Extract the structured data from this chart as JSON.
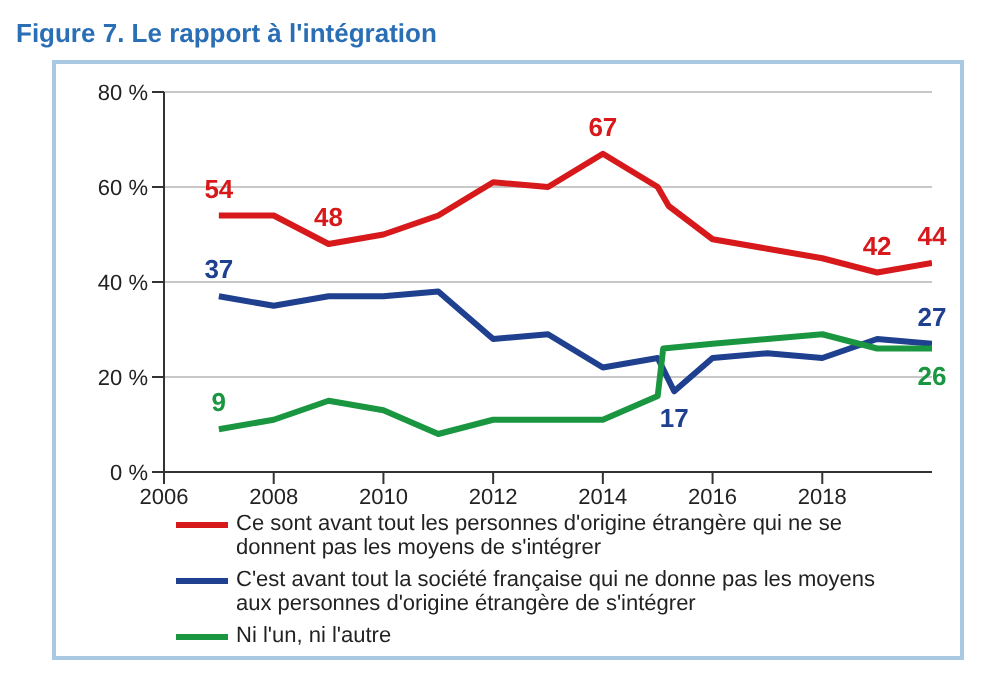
{
  "chart_data": {
    "type": "line",
    "title": "Figure 7. Le rapport à l'intégration",
    "xlim": [
      2006,
      2020
    ],
    "xticks": [
      2006,
      2008,
      2010,
      2012,
      2014,
      2016,
      2018
    ],
    "ylim": [
      0,
      80
    ],
    "yticks": [
      {
        "value": 0,
        "label": "0 %"
      },
      {
        "value": 20,
        "label": "20 %"
      },
      {
        "value": 40,
        "label": "40 %"
      },
      {
        "value": 60,
        "label": "60 %"
      },
      {
        "value": 80,
        "label": "80 %"
      }
    ],
    "grid": "y",
    "legend": "bottom",
    "marker": "none",
    "line_style": "solid",
    "series": [
      {
        "name": "Ce sont avant tout les personnes d'origine étrangère qui ne se donnent pas les moyens de s'intégrer",
        "color": "#d7191c",
        "x": [
          2007,
          2008,
          2009,
          2010,
          2011,
          2012,
          2013,
          2014,
          2015,
          2015.2,
          2016,
          2017,
          2018,
          2019,
          2020
        ],
        "values": [
          54,
          54,
          48,
          50,
          54,
          61,
          60,
          67,
          60,
          56,
          49,
          47,
          45,
          42,
          44
        ],
        "value_labels": [
          "54",
          null,
          "48",
          null,
          null,
          null,
          null,
          "67",
          null,
          null,
          null,
          null,
          null,
          "42",
          "44"
        ]
      },
      {
        "name": "C'est avant tout la société française qui ne donne pas les moyens aux personnes d'origine étrangère de s'intégrer",
        "color": "#1f3f8f",
        "x": [
          2007,
          2008,
          2009,
          2010,
          2011,
          2012,
          2013,
          2014,
          2015,
          2015.3,
          2016,
          2017,
          2018,
          2019,
          2020
        ],
        "values": [
          37,
          35,
          37,
          37,
          38,
          28,
          29,
          22,
          24,
          17,
          24,
          25,
          24,
          28,
          27
        ],
        "value_labels": [
          "37",
          null,
          null,
          null,
          null,
          null,
          null,
          null,
          null,
          "17",
          null,
          null,
          null,
          null,
          "27"
        ]
      },
      {
        "name": "Ni l'un, ni l'autre",
        "color": "#1a9641",
        "x": [
          2007,
          2008,
          2009,
          2010,
          2011,
          2012,
          2013,
          2014,
          2015,
          2015.1,
          2016,
          2017,
          2018,
          2019,
          2020
        ],
        "values": [
          9,
          11,
          15,
          13,
          8,
          11,
          11,
          11,
          16,
          26,
          27,
          28,
          29,
          26,
          26
        ],
        "value_labels": [
          "9",
          null,
          null,
          null,
          null,
          null,
          null,
          null,
          null,
          null,
          null,
          null,
          null,
          null,
          "26"
        ]
      }
    ]
  }
}
